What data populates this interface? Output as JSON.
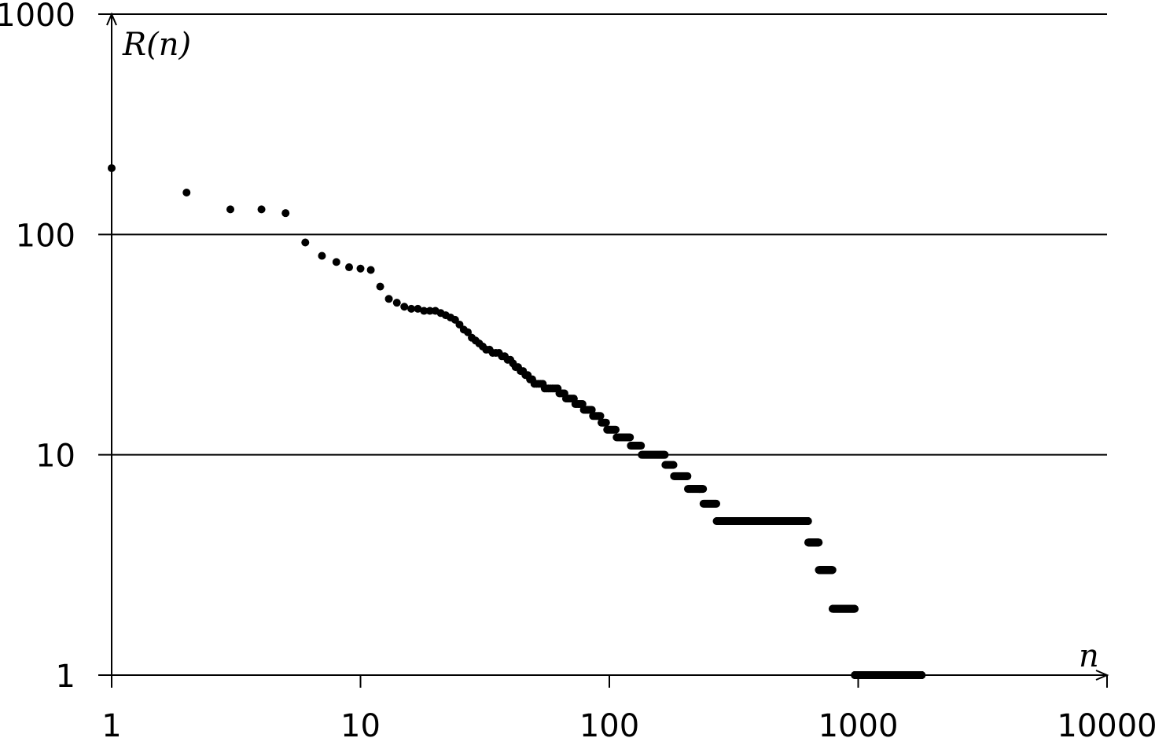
{
  "chart_data": {
    "type": "scatter",
    "title": "",
    "xlabel": "n",
    "ylabel": "R(n)",
    "xscale": "log",
    "yscale": "log",
    "xlim": [
      1,
      10000
    ],
    "ylim": [
      1,
      1000
    ],
    "grid": "horizontal major gridlines",
    "legend": "none",
    "x_tick_labels": [
      "1",
      "10",
      "100",
      "1000",
      "10000"
    ],
    "y_tick_labels": [
      "1",
      "10",
      "100",
      "1000"
    ],
    "marker_color": "#000000",
    "step_rule": "points are plotted at every integer rank n from first to last; R(n) is log-interpolated between anchors and rounded to the nearest integer",
    "anchors": [
      [
        1,
        200
      ],
      [
        2,
        155
      ],
      [
        3,
        130
      ],
      [
        4,
        130
      ],
      [
        5,
        125
      ],
      [
        6,
        92
      ],
      [
        7,
        80
      ],
      [
        8,
        75
      ],
      [
        9,
        71
      ],
      [
        10,
        70
      ],
      [
        11,
        69
      ],
      [
        12,
        58
      ],
      [
        13,
        51
      ],
      [
        14,
        49
      ],
      [
        16,
        46
      ],
      [
        20,
        45
      ],
      [
        24,
        41
      ],
      [
        28,
        34
      ],
      [
        32,
        30
      ],
      [
        36,
        29
      ],
      [
        45,
        24
      ],
      [
        50,
        21
      ],
      [
        60,
        20
      ],
      [
        75,
        17
      ],
      [
        90,
        15
      ],
      [
        100,
        13
      ],
      [
        130,
        11
      ],
      [
        140,
        10
      ],
      [
        165,
        10
      ],
      [
        170,
        9
      ],
      [
        195,
        8
      ],
      [
        220,
        7
      ],
      [
        260,
        6
      ],
      [
        280,
        5
      ],
      [
        620,
        5
      ],
      [
        640,
        4
      ],
      [
        690,
        4
      ],
      [
        700,
        3
      ],
      [
        780,
        3
      ],
      [
        800,
        2
      ],
      [
        960,
        2
      ],
      [
        980,
        1
      ],
      [
        1800,
        1
      ]
    ]
  }
}
